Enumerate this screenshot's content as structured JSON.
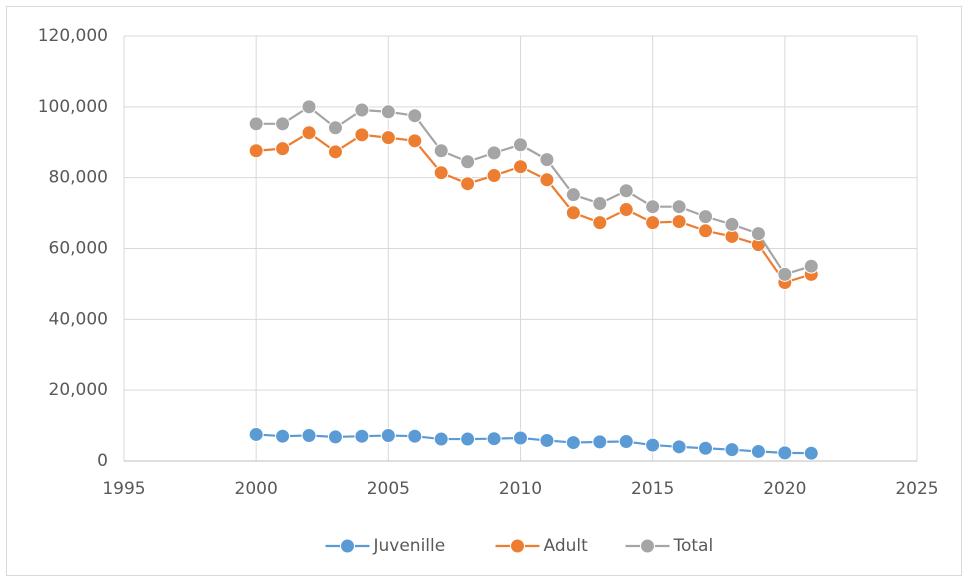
{
  "chart_data": {
    "type": "line",
    "x": [
      2000,
      2001,
      2002,
      2003,
      2004,
      2005,
      2006,
      2007,
      2008,
      2009,
      2010,
      2011,
      2012,
      2013,
      2014,
      2015,
      2016,
      2017,
      2018,
      2019,
      2020,
      2021
    ],
    "series": [
      {
        "name": "Juvenille",
        "color": "#5b9bd5",
        "values": [
          7500,
          7000,
          7200,
          6800,
          7000,
          7200,
          7000,
          6200,
          6200,
          6300,
          6500,
          5800,
          5200,
          5400,
          5500,
          4500,
          4000,
          3600,
          3200,
          2700,
          2300,
          2200
        ]
      },
      {
        "name": "Adult",
        "color": "#ed7d31",
        "values": [
          87600,
          88200,
          92700,
          87300,
          92100,
          91300,
          90400,
          81400,
          78300,
          80600,
          83100,
          79400,
          70100,
          67300,
          71000,
          67300,
          67600,
          65000,
          63400,
          61100,
          50400,
          52700
        ]
      },
      {
        "name": "Total",
        "color": "#a5a5a5",
        "values": [
          95200,
          95200,
          100000,
          94100,
          99100,
          98600,
          97500,
          87600,
          84500,
          87000,
          89300,
          85100,
          75200,
          72700,
          76300,
          71800,
          71800,
          69000,
          66800,
          64200,
          52700,
          55000
        ]
      }
    ],
    "xlim": [
      1995,
      2025
    ],
    "xticks": [
      1995,
      2000,
      2005,
      2010,
      2015,
      2020,
      2025
    ],
    "ylim": [
      0,
      120000
    ],
    "yticks": [
      0,
      {
        "value": 20000,
        "label": "20,000"
      },
      {
        "value": 40000,
        "label": "40,000"
      },
      {
        "value": 60000,
        "label": "60,000"
      },
      {
        "value": 80000,
        "label": "80,000"
      },
      {
        "value": 100000,
        "label": "100,000"
      },
      {
        "value": 120000,
        "label": "120,000"
      }
    ],
    "grid": true,
    "legend": "bottom"
  }
}
